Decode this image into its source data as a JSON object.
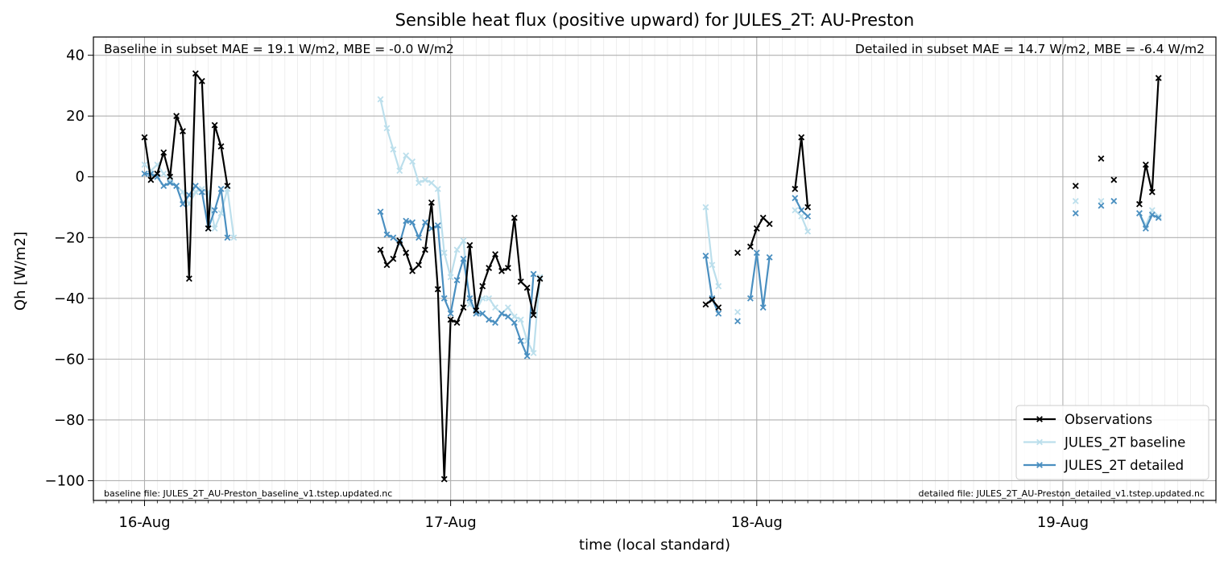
{
  "chart_data": {
    "type": "line",
    "title": "Sensible heat flux (positive upward) for JULES_2T: AU-Preston",
    "xlabel": "time (local standard)",
    "ylabel": "Qh [W/m2]",
    "ylim": [
      -106.5,
      46
    ],
    "xlim": [
      -0.167,
      3.5
    ],
    "grid": true,
    "legend_position": "lower-right",
    "x_ticks": [
      {
        "label": "16-Aug",
        "value": 0
      },
      {
        "label": "17-Aug",
        "value": 1
      },
      {
        "label": "18-Aug",
        "value": 2
      },
      {
        "label": "19-Aug",
        "value": 3
      }
    ],
    "y_ticks": [
      {
        "label": "40",
        "value": 40
      },
      {
        "label": "20",
        "value": 20
      },
      {
        "label": "0",
        "value": 0
      },
      {
        "label": "−20",
        "value": -20
      },
      {
        "label": "−40",
        "value": -40
      },
      {
        "label": "−60",
        "value": -60
      },
      {
        "label": "−80",
        "value": -80
      },
      {
        "label": "−100",
        "value": -100
      }
    ],
    "annotations": {
      "baseline_stats": "Baseline in subset MAE = 19.1 W/m2, MBE = -0.0 W/m2",
      "detailed_stats": "Detailed in subset MAE = 14.7 W/m2, MBE = -6.4 W/m2",
      "baseline_file": "baseline file: JULES_2T_AU-Preston_baseline_v1.tstep.updated.nc",
      "detailed_file": "detailed file: JULES_2T_AU-Preston_detailed_v1.tstep.updated.nc"
    },
    "x_unit": "days since 16-Aug 00:00",
    "series": [
      {
        "name": "JULES_2T baseline",
        "color": "#bcdfec",
        "segments": [
          [
            [
              0,
              4
            ],
            [
              0.0208,
              2
            ],
            [
              0.0417,
              4
            ],
            [
              0.0625,
              1
            ],
            [
              0.0833,
              -1
            ],
            [
              0.1042,
              -3
            ],
            [
              0.125,
              -5
            ],
            [
              0.1458,
              -9
            ],
            [
              0.1667,
              -5
            ],
            [
              0.1875,
              -4
            ],
            [
              0.2083,
              -5
            ],
            [
              0.2292,
              -17
            ],
            [
              0.25,
              -12
            ],
            [
              0.2708,
              -4
            ],
            [
              0.2917,
              -20
            ]
          ],
          [
            [
              0.7708,
              25.5
            ],
            [
              0.7917,
              16
            ],
            [
              0.8125,
              9
            ],
            [
              0.8333,
              2
            ],
            [
              0.8542,
              7
            ],
            [
              0.875,
              5
            ],
            [
              0.8958,
              -2
            ],
            [
              0.9167,
              -1
            ],
            [
              0.9375,
              -2
            ],
            [
              0.9583,
              -4
            ],
            [
              0.9792,
              -25
            ],
            [
              1.0,
              -33
            ],
            [
              1.0208,
              -24
            ],
            [
              1.0417,
              -21
            ],
            [
              1.0625,
              -42
            ],
            [
              1.0833,
              -44
            ],
            [
              1.1042,
              -40
            ],
            [
              1.125,
              -40
            ],
            [
              1.1458,
              -43
            ],
            [
              1.1667,
              -45
            ],
            [
              1.1875,
              -43
            ],
            [
              1.2083,
              -46
            ],
            [
              1.2292,
              -47
            ],
            [
              1.25,
              -54
            ],
            [
              1.2708,
              -58
            ],
            [
              1.2917,
              -33
            ]
          ],
          [
            [
              1.8333,
              -10
            ],
            [
              1.8542,
              -29
            ],
            [
              1.875,
              -36
            ]
          ],
          [
            [
              1.9375,
              -44.5
            ]
          ],
          [
            [
              2.125,
              -11
            ],
            [
              2.1458,
              -13
            ],
            [
              2.1667,
              -18
            ]
          ],
          [
            [
              3.0417,
              -8
            ]
          ],
          [
            [
              3.125,
              -8
            ]
          ],
          [
            [
              3.1667,
              -8
            ]
          ],
          [
            [
              3.25,
              -12
            ],
            [
              3.2708,
              -16
            ],
            [
              3.2917,
              -11
            ],
            [
              3.3125,
              -13
            ]
          ]
        ]
      },
      {
        "name": "JULES_2T detailed",
        "color": "#4a8fc0",
        "segments": [
          [
            [
              0,
              1
            ],
            [
              0.0208,
              1
            ],
            [
              0.0417,
              0
            ],
            [
              0.0625,
              -3
            ],
            [
              0.0833,
              -2
            ],
            [
              0.1042,
              -3
            ],
            [
              0.125,
              -9
            ],
            [
              0.1458,
              -6
            ],
            [
              0.1667,
              -3
            ],
            [
              0.1875,
              -5
            ],
            [
              0.2083,
              -17
            ],
            [
              0.2292,
              -11
            ],
            [
              0.25,
              -4
            ],
            [
              0.2708,
              -20
            ]
          ],
          [
            [
              0.7708,
              -11.5
            ],
            [
              0.7917,
              -19
            ],
            [
              0.8125,
              -20
            ],
            [
              0.8333,
              -22
            ],
            [
              0.8542,
              -14.5
            ],
            [
              0.875,
              -15
            ],
            [
              0.8958,
              -20
            ],
            [
              0.9167,
              -15
            ],
            [
              0.9375,
              -17
            ],
            [
              0.9583,
              -16
            ],
            [
              0.9792,
              -40
            ],
            [
              1.0,
              -45
            ],
            [
              1.0208,
              -34
            ],
            [
              1.0417,
              -27
            ],
            [
              1.0625,
              -40
            ],
            [
              1.0833,
              -45
            ],
            [
              1.1042,
              -45
            ],
            [
              1.125,
              -47
            ],
            [
              1.1458,
              -48
            ],
            [
              1.1667,
              -45
            ],
            [
              1.1875,
              -46
            ],
            [
              1.2083,
              -48
            ],
            [
              1.2292,
              -54
            ],
            [
              1.25,
              -59
            ],
            [
              1.2708,
              -32
            ]
          ],
          [
            [
              1.8333,
              -26
            ],
            [
              1.8542,
              -40
            ],
            [
              1.875,
              -45
            ]
          ],
          [
            [
              1.9375,
              -47.5
            ]
          ],
          [
            [
              1.9792,
              -40
            ],
            [
              2.0,
              -25
            ],
            [
              2.0208,
              -43
            ],
            [
              2.0417,
              -26.5
            ]
          ],
          [
            [
              2.125,
              -7
            ],
            [
              2.1458,
              -11
            ],
            [
              2.1667,
              -13
            ]
          ],
          [
            [
              3.0417,
              -12
            ]
          ],
          [
            [
              3.125,
              -9.5
            ]
          ],
          [
            [
              3.1667,
              -8
            ]
          ],
          [
            [
              3.25,
              -12
            ],
            [
              3.2708,
              -17
            ],
            [
              3.2917,
              -12.5
            ],
            [
              3.3125,
              -13.5
            ]
          ]
        ]
      },
      {
        "name": "Observations",
        "color": "#000000",
        "segments": [
          [
            [
              0,
              13
            ],
            [
              0.0208,
              -1
            ],
            [
              0.0417,
              1
            ],
            [
              0.0625,
              8
            ],
            [
              0.0833,
              0
            ],
            [
              0.1042,
              20
            ],
            [
              0.125,
              15
            ],
            [
              0.1458,
              -33.5
            ],
            [
              0.1667,
              34
            ],
            [
              0.1875,
              31.5
            ],
            [
              0.2083,
              -17
            ],
            [
              0.2292,
              17
            ],
            [
              0.25,
              10
            ],
            [
              0.2708,
              -3
            ]
          ],
          [
            [
              0.7708,
              -24
            ],
            [
              0.7917,
              -29
            ],
            [
              0.8125,
              -27
            ],
            [
              0.8333,
              -21
            ],
            [
              0.8542,
              -25
            ],
            [
              0.875,
              -31
            ],
            [
              0.8958,
              -29
            ],
            [
              0.9167,
              -24
            ],
            [
              0.9375,
              -8.5
            ],
            [
              0.9583,
              -37
            ],
            [
              0.9792,
              -99.5
            ],
            [
              1.0,
              -47
            ],
            [
              1.0208,
              -48
            ],
            [
              1.0417,
              -43
            ],
            [
              1.0625,
              -22.5
            ],
            [
              1.0833,
              -44
            ],
            [
              1.1042,
              -36
            ],
            [
              1.125,
              -30
            ],
            [
              1.1458,
              -25.5
            ],
            [
              1.1667,
              -31
            ],
            [
              1.1875,
              -30
            ],
            [
              1.2083,
              -13.5
            ],
            [
              1.2292,
              -34.5
            ],
            [
              1.25,
              -36.5
            ],
            [
              1.2708,
              -45.5
            ],
            [
              1.2917,
              -33.5
            ]
          ],
          [
            [
              1.8333,
              -42
            ],
            [
              1.8542,
              -40.5
            ],
            [
              1.875,
              -43
            ]
          ],
          [
            [
              1.9375,
              -25
            ]
          ],
          [
            [
              1.9792,
              -23
            ],
            [
              2.0,
              -17
            ],
            [
              2.0208,
              -13.5
            ],
            [
              2.0417,
              -15.5
            ]
          ],
          [
            [
              2.125,
              -4
            ],
            [
              2.1458,
              13
            ],
            [
              2.1667,
              -10
            ]
          ],
          [
            [
              3.0417,
              -3
            ]
          ],
          [
            [
              3.125,
              6
            ]
          ],
          [
            [
              3.1667,
              -1
            ]
          ],
          [
            [
              3.25,
              -9
            ],
            [
              3.2708,
              4
            ],
            [
              3.2917,
              -5
            ],
            [
              3.3125,
              32.5
            ]
          ]
        ]
      }
    ],
    "legend": [
      {
        "label": "Observations",
        "color": "#000000"
      },
      {
        "label": "JULES_2T baseline",
        "color": "#bcdfec"
      },
      {
        "label": "JULES_2T detailed",
        "color": "#4a8fc0"
      }
    ]
  }
}
